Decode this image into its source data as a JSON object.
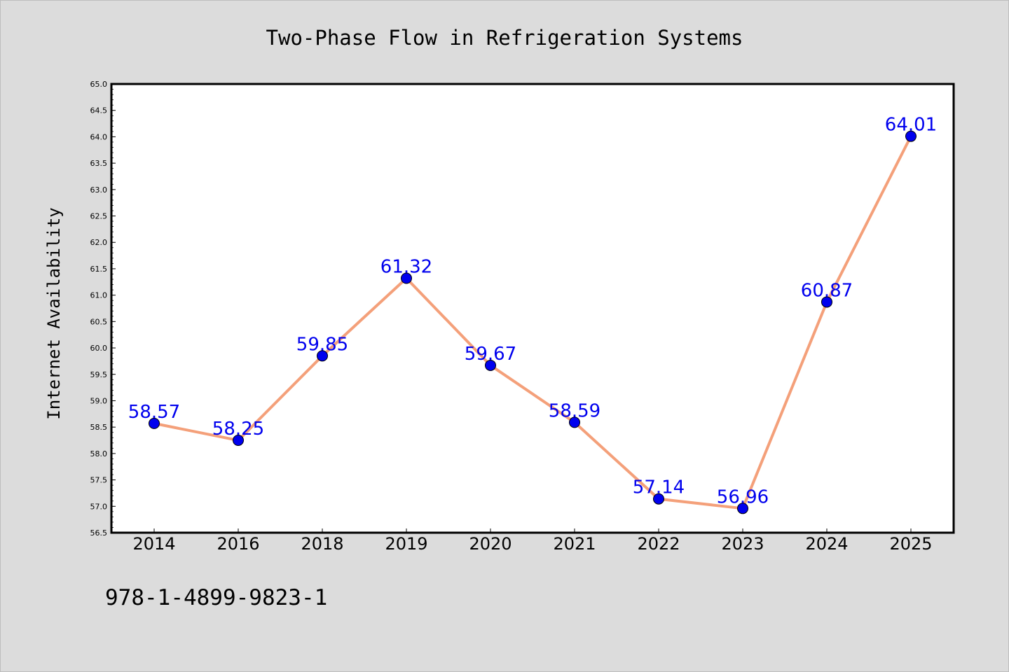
{
  "chart_data": {
    "type": "line",
    "title": "Two-Phase Flow in Refrigeration Systems",
    "xlabel": "",
    "ylabel": "Internet Availability",
    "categories": [
      "2014",
      "2016",
      "2018",
      "2019",
      "2020",
      "2021",
      "2022",
      "2023",
      "2024",
      "2025"
    ],
    "series": [
      {
        "values": [
          58.57,
          58.25,
          59.85,
          61.32,
          59.67,
          58.59,
          57.14,
          56.96,
          60.87,
          64.01
        ],
        "data_labels": [
          "58.57",
          "58.25",
          "59.85",
          "61.32",
          "59.67",
          "58.59",
          "57.14",
          "56.96",
          "60.87",
          "64.01"
        ],
        "line_color": "#f4a07a",
        "marker_color": "#0000ee",
        "label_color": "#0000ee"
      }
    ],
    "ylim": [
      56.5,
      65.0
    ],
    "yticks": [
      "56.5",
      "57.0",
      "57.5",
      "58.0",
      "58.5",
      "59.0",
      "59.5",
      "60.0",
      "60.5",
      "61.0",
      "61.5",
      "62.0",
      "62.5",
      "63.0",
      "63.5",
      "64.0",
      "64.5",
      "65.0"
    ],
    "grid": false,
    "legend": "none"
  },
  "footnote": "978-1-4899-9823-1",
  "colors": {
    "background": "#dcdcdc",
    "plot_area": "#ffffff"
  }
}
